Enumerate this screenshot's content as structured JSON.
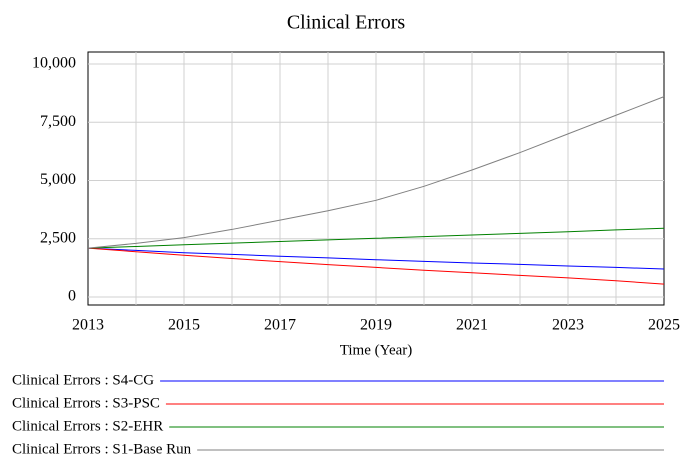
{
  "chart_data": {
    "type": "line",
    "title": "Clinical Errors",
    "x_label": "Time (Year)",
    "x": [
      2013,
      2014,
      2015,
      2016,
      2017,
      2018,
      2019,
      2020,
      2021,
      2022,
      2023,
      2024,
      2025
    ],
    "series": [
      {
        "name": "Clinical Errors : S4-CG",
        "color": "#0000ff",
        "values": [
          2100,
          2000,
          1900,
          1830,
          1750,
          1680,
          1600,
          1530,
          1460,
          1400,
          1330,
          1270,
          1200
        ]
      },
      {
        "name": "Clinical Errors : S3-PSC",
        "color": "#ff0000",
        "values": [
          2100,
          1940,
          1790,
          1650,
          1520,
          1390,
          1270,
          1150,
          1040,
          930,
          820,
          700,
          550
        ]
      },
      {
        "name": "Clinical Errors : S2-EHR",
        "color": "#008000",
        "values": [
          2100,
          2170,
          2240,
          2310,
          2380,
          2450,
          2520,
          2590,
          2660,
          2730,
          2800,
          2880,
          2950
        ]
      },
      {
        "name": "Clinical Errors : S1-Base Run",
        "color": "#808080",
        "values": [
          2100,
          2300,
          2550,
          2900,
          3300,
          3700,
          4150,
          4750,
          5450,
          6200,
          7000,
          7800,
          8600
        ]
      }
    ],
    "xlim": [
      2013,
      2025
    ],
    "xticks": [
      2013,
      2015,
      2017,
      2019,
      2021,
      2023,
      2025
    ],
    "ylim": [
      0,
      10000
    ],
    "yticks": [
      0,
      {
        "value": 2500,
        "label": "2,500"
      },
      {
        "value": 5000,
        "label": "5,000"
      },
      {
        "value": 7500,
        "label": "7,500"
      },
      {
        "value": 10000,
        "label": "10,000"
      }
    ],
    "grid": true
  }
}
